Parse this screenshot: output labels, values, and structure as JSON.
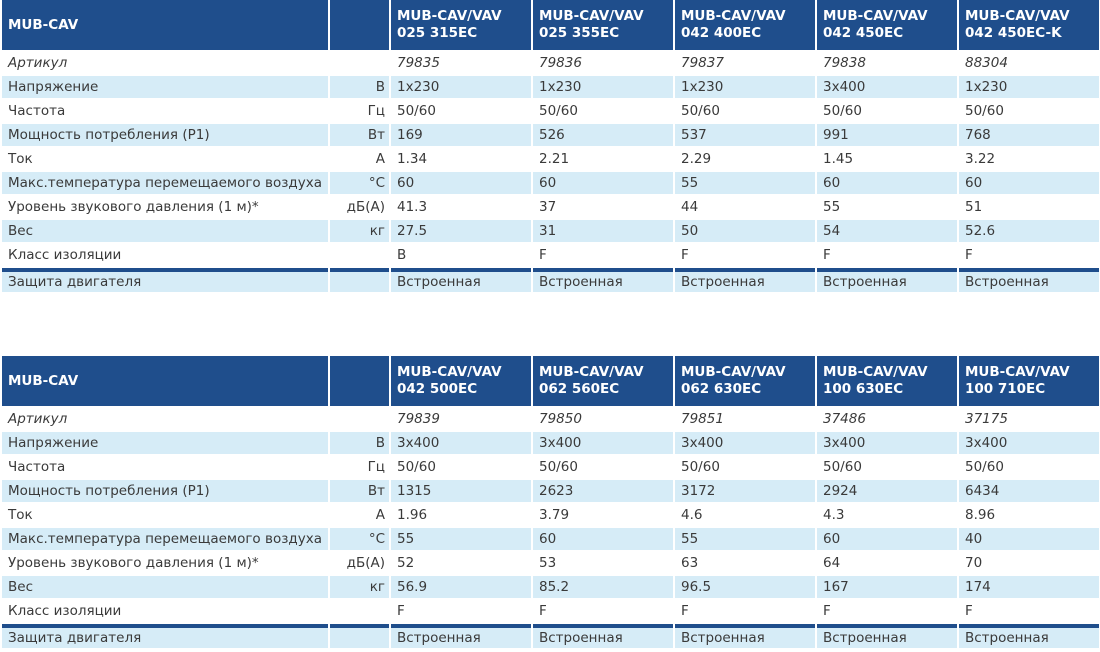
{
  "tables": [
    {
      "header": {
        "title": "MUB-CAV",
        "models": [
          [
            "MUB-CAV/VAV",
            "025 315EC"
          ],
          [
            "MUB-CAV/VAV",
            "025 355EC"
          ],
          [
            "MUB-CAV/VAV",
            "042 400EC"
          ],
          [
            "MUB-CAV/VAV",
            "042 450EC"
          ],
          [
            "MUB-CAV/VAV",
            "042 450EC-K"
          ]
        ]
      },
      "rows": [
        {
          "label": "Артикул",
          "unit": "",
          "values": [
            "79835",
            "79836",
            "79837",
            "79838",
            "88304"
          ]
        },
        {
          "label": "Напряжение",
          "unit": "В",
          "values": [
            "1x230",
            "1x230",
            "1x230",
            "3x400",
            "1x230"
          ]
        },
        {
          "label": "Частота",
          "unit": "Гц",
          "values": [
            "50/60",
            "50/60",
            "50/60",
            "50/60",
            "50/60"
          ]
        },
        {
          "label": "Мощность потребления (P1)",
          "unit": "Вт",
          "values": [
            "169",
            "526",
            "537",
            "991",
            "768"
          ]
        },
        {
          "label": "Ток",
          "unit": "А",
          "values": [
            "1.34",
            "2.21",
            "2.29",
            "1.45",
            "3.22"
          ]
        },
        {
          "label": "Макс.температура перемещаемого воздуха",
          "unit": "°C",
          "values": [
            "60",
            "60",
            "55",
            "60",
            "60"
          ]
        },
        {
          "label": "Уровень звукового давления (1 м)*",
          "unit": "дБ(А)",
          "values": [
            "41.3",
            "37",
            "44",
            "55",
            "51"
          ]
        },
        {
          "label": "Вес",
          "unit": "кг",
          "values": [
            "27.5",
            "31",
            "50",
            "54",
            "52.6"
          ]
        },
        {
          "label": "Класс изоляции",
          "unit": "",
          "values": [
            "B",
            "F",
            "F",
            "F",
            "F"
          ]
        },
        {
          "label": "Защита двигателя",
          "unit": "",
          "values": [
            "Встроенная",
            "Встроенная",
            "Встроенная",
            "Встроенная",
            "Встроенная"
          ]
        }
      ]
    },
    {
      "header": {
        "title": "MUB-CAV",
        "models": [
          [
            "MUB-CAV/VAV",
            "042 500EC"
          ],
          [
            "MUB-CAV/VAV",
            "062 560EC"
          ],
          [
            "MUB-CAV/VAV",
            "062 630EC"
          ],
          [
            "MUB-CAV/VAV",
            "100 630EC"
          ],
          [
            "MUB-CAV/VAV",
            "100 710EC"
          ]
        ]
      },
      "rows": [
        {
          "label": "Артикул",
          "unit": "",
          "values": [
            "79839",
            "79850",
            "79851",
            "37486",
            "37175"
          ]
        },
        {
          "label": "Напряжение",
          "unit": "В",
          "values": [
            "3x400",
            "3x400",
            "3x400",
            "3x400",
            "3x400"
          ]
        },
        {
          "label": "Частота",
          "unit": "Гц",
          "values": [
            "50/60",
            "50/60",
            "50/60",
            "50/60",
            "50/60"
          ]
        },
        {
          "label": "Мощность потребления (P1)",
          "unit": "Вт",
          "values": [
            "1315",
            "2623",
            "3172",
            "2924",
            "6434"
          ]
        },
        {
          "label": "Ток",
          "unit": "А",
          "values": [
            "1.96",
            "3.79",
            "4.6",
            "4.3",
            "8.96"
          ]
        },
        {
          "label": "Макс.температура перемещаемого воздуха",
          "unit": "°C",
          "values": [
            "55",
            "60",
            "55",
            "60",
            "40"
          ]
        },
        {
          "label": "Уровень звукового давления (1 м)*",
          "unit": "дБ(А)",
          "values": [
            "52",
            "53",
            "63",
            "64",
            "70"
          ]
        },
        {
          "label": "Вес",
          "unit": "кг",
          "values": [
            "56.9",
            "85.2",
            "96.5",
            "167",
            "174"
          ]
        },
        {
          "label": "Класс изоляции",
          "unit": "",
          "values": [
            "F",
            "F",
            "F",
            "F",
            "F"
          ]
        },
        {
          "label": "Защита двигателя",
          "unit": "",
          "values": [
            "Встроенная",
            "Встроенная",
            "Встроенная",
            "Встроенная",
            "Встроенная"
          ]
        }
      ]
    }
  ]
}
